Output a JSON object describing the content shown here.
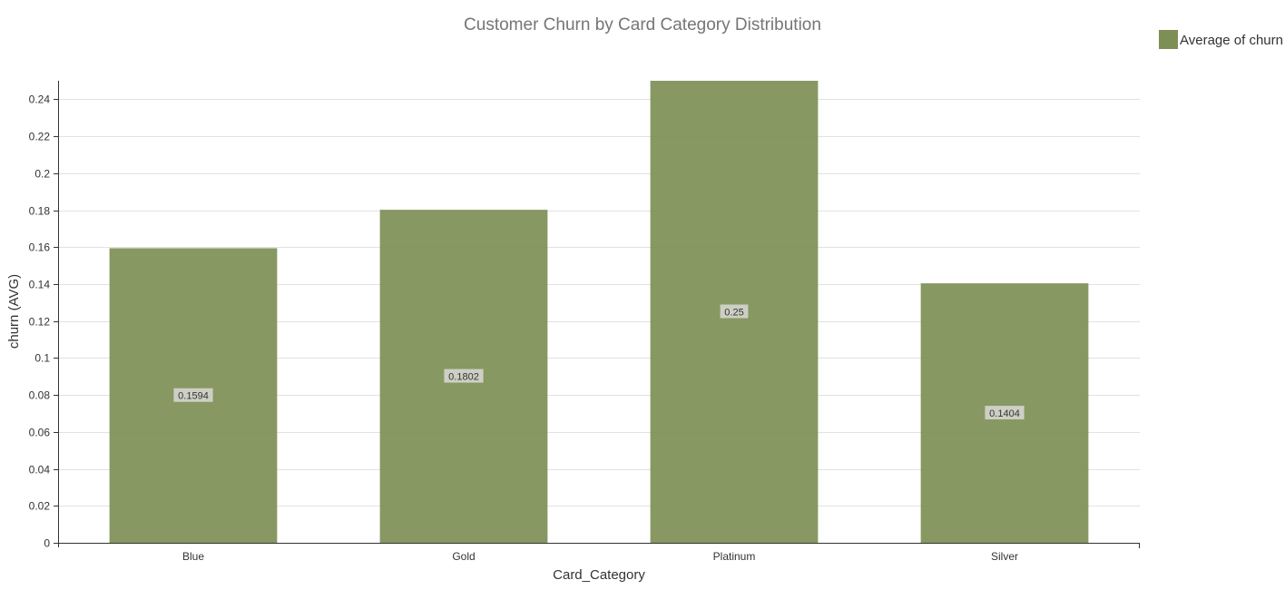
{
  "chart_data": {
    "type": "bar",
    "title": "Customer Churn by Card Category Distribution",
    "xlabel": "Card_Category",
    "ylabel": "churn (AVG)",
    "categories": [
      "Blue",
      "Gold",
      "Platinum",
      "Silver"
    ],
    "series": [
      {
        "name": "Average of churn",
        "color": "#7d8f55",
        "values": [
          0.1594,
          0.1802,
          0.25,
          0.1404
        ],
        "data_labels": [
          "0.1594",
          "0.1802",
          "0.25",
          "0.1404"
        ]
      }
    ],
    "ylim": [
      0,
      0.25
    ],
    "y_ticks": [
      0,
      0.02,
      0.04,
      0.06,
      0.08,
      0.1,
      0.12,
      0.14,
      0.16,
      0.18,
      0.2,
      0.22,
      0.24
    ],
    "y_tick_labels": [
      "0",
      "0.02",
      "0.04",
      "0.06",
      "0.08",
      "0.1",
      "0.12",
      "0.14",
      "0.16",
      "0.18",
      "0.2",
      "0.22",
      "0.24"
    ],
    "grid": true,
    "legend_position": "top-right"
  }
}
